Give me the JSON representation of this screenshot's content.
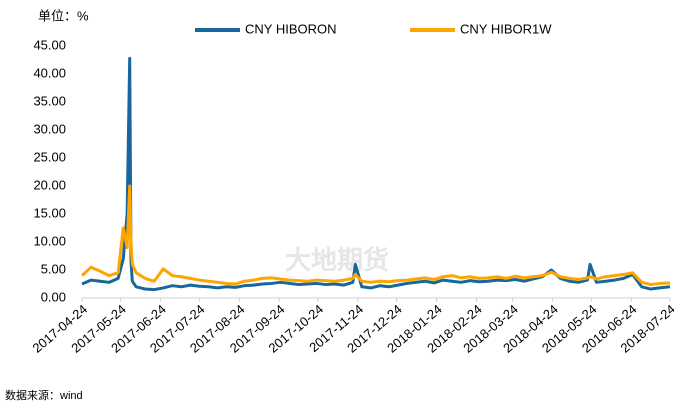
{
  "chart_data": {
    "type": "line",
    "title": "单位：%",
    "source": "数据来源：wind",
    "watermark": "大地期货",
    "x": [
      "2017-04-24",
      "2017-05-01",
      "2017-05-08",
      "2017-05-15",
      "2017-05-22",
      "2017-05-26",
      "2017-05-29",
      "2017-05-31",
      "2017-06-01",
      "2017-06-02",
      "2017-06-05",
      "2017-06-12",
      "2017-06-19",
      "2017-06-26",
      "2017-07-03",
      "2017-07-10",
      "2017-07-17",
      "2017-07-24",
      "2017-07-31",
      "2017-08-07",
      "2017-08-14",
      "2017-08-21",
      "2017-08-28",
      "2017-09-04",
      "2017-09-11",
      "2017-09-18",
      "2017-09-25",
      "2017-10-02",
      "2017-10-09",
      "2017-10-16",
      "2017-10-23",
      "2017-10-30",
      "2017-11-06",
      "2017-11-13",
      "2017-11-20",
      "2017-11-22",
      "2017-11-27",
      "2017-12-04",
      "2017-12-11",
      "2017-12-18",
      "2017-12-25",
      "2018-01-01",
      "2018-01-08",
      "2018-01-15",
      "2018-01-22",
      "2018-01-29",
      "2018-02-05",
      "2018-02-12",
      "2018-02-19",
      "2018-02-26",
      "2018-03-05",
      "2018-03-12",
      "2018-03-19",
      "2018-03-26",
      "2018-04-02",
      "2018-04-09",
      "2018-04-16",
      "2018-04-23",
      "2018-04-30",
      "2018-05-07",
      "2018-05-14",
      "2018-05-21",
      "2018-05-23",
      "2018-05-28",
      "2018-06-04",
      "2018-06-11",
      "2018-06-18",
      "2018-06-25",
      "2018-07-02",
      "2018-07-09",
      "2018-07-16",
      "2018-07-24"
    ],
    "series": [
      {
        "name": "CNY HIBORON",
        "color": "#17679a",
        "values": [
          2.5,
          3.2,
          3.0,
          2.8,
          3.5,
          7.0,
          15.0,
          42.8,
          6.5,
          3.0,
          2.0,
          1.6,
          1.5,
          1.8,
          2.2,
          2.0,
          2.3,
          2.1,
          2.0,
          1.8,
          2.0,
          1.9,
          2.2,
          2.3,
          2.5,
          2.6,
          2.8,
          2.6,
          2.4,
          2.5,
          2.6,
          2.4,
          2.5,
          2.3,
          2.8,
          6.0,
          2.0,
          1.8,
          2.2,
          2.0,
          2.3,
          2.6,
          2.8,
          3.0,
          2.7,
          3.2,
          3.0,
          2.8,
          3.1,
          2.9,
          3.0,
          3.2,
          3.1,
          3.3,
          3.0,
          3.4,
          3.8,
          5.0,
          3.5,
          3.0,
          2.8,
          3.2,
          6.0,
          2.8,
          3.0,
          3.2,
          3.5,
          4.2,
          2.0,
          1.6,
          1.8,
          2.0
        ]
      },
      {
        "name": "CNY HIBOR1W",
        "color": "#ffa500",
        "values": [
          4.0,
          5.5,
          4.8,
          4.0,
          4.5,
          12.5,
          9.0,
          20.0,
          10.0,
          6.0,
          4.5,
          3.5,
          3.0,
          5.2,
          4.0,
          3.8,
          3.5,
          3.2,
          3.0,
          2.8,
          2.6,
          2.5,
          3.0,
          3.2,
          3.5,
          3.6,
          3.4,
          3.2,
          3.1,
          3.0,
          3.2,
          3.1,
          3.0,
          3.2,
          3.5,
          4.2,
          3.0,
          2.8,
          3.0,
          2.9,
          3.1,
          3.2,
          3.4,
          3.6,
          3.3,
          3.8,
          4.0,
          3.6,
          3.8,
          3.5,
          3.6,
          3.8,
          3.5,
          3.9,
          3.6,
          3.8,
          4.0,
          4.6,
          3.8,
          3.5,
          3.3,
          3.6,
          3.8,
          3.4,
          3.8,
          4.0,
          4.2,
          4.5,
          2.8,
          2.4,
          2.6,
          2.7
        ]
      }
    ],
    "xlim": [
      "2017-04-24",
      "2018-07-24"
    ],
    "xticks": [
      "2017-04-24",
      "2017-05-24",
      "2017-06-24",
      "2017-07-24",
      "2017-08-24",
      "2017-09-24",
      "2017-10-24",
      "2017-11-24",
      "2017-12-24",
      "2018-01-24",
      "2018-02-24",
      "2018-03-24",
      "2018-04-24",
      "2018-05-24",
      "2018-06-24",
      "2018-07-24"
    ],
    "ylim": [
      0,
      45
    ],
    "yticks": [
      {
        "value": 0,
        "label": "0.00"
      },
      {
        "value": 5,
        "label": "5.00"
      },
      {
        "value": 10,
        "label": "10.00"
      },
      {
        "value": 15,
        "label": "15.00"
      },
      {
        "value": 20,
        "label": "20.00"
      },
      {
        "value": 25,
        "label": "25.00"
      },
      {
        "value": 30,
        "label": "30.00"
      },
      {
        "value": 35,
        "label": "35.00"
      },
      {
        "value": 40,
        "label": "40.00"
      },
      {
        "value": 45,
        "label": "45.00"
      }
    ],
    "legend": "top"
  }
}
